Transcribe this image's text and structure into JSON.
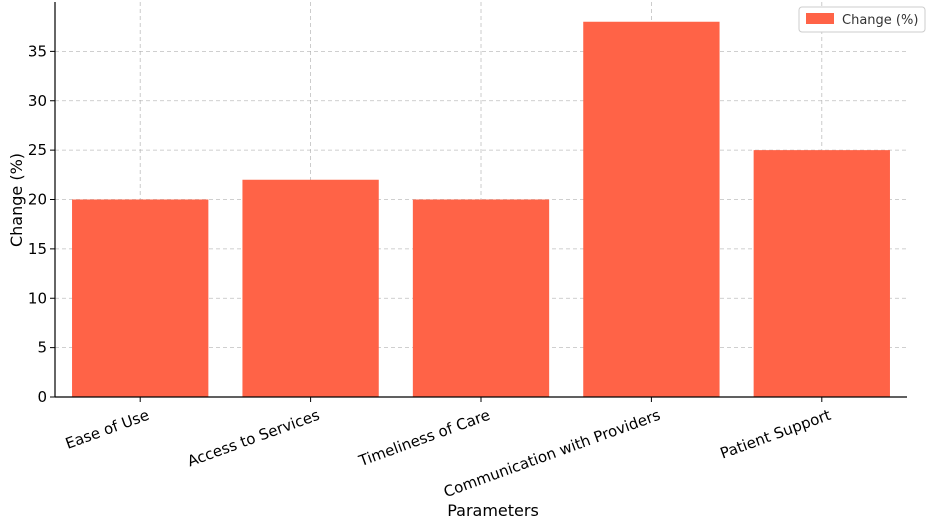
{
  "chart_data": {
    "type": "bar",
    "categories": [
      "Ease of Use",
      "Access to Services",
      "Timeliness of Care",
      "Communication with Providers",
      "Patient Support"
    ],
    "series": [
      {
        "name": "Change (%)",
        "values": [
          20,
          22,
          20,
          38,
          25
        ],
        "color": "#FF6347"
      }
    ],
    "xlabel": "Parameters",
    "ylabel": "Change (%)",
    "ylim": [
      0,
      40
    ],
    "yticks": [
      0,
      5,
      10,
      15,
      20,
      25,
      30,
      35
    ],
    "grid": true,
    "legend_position": "top-right"
  }
}
